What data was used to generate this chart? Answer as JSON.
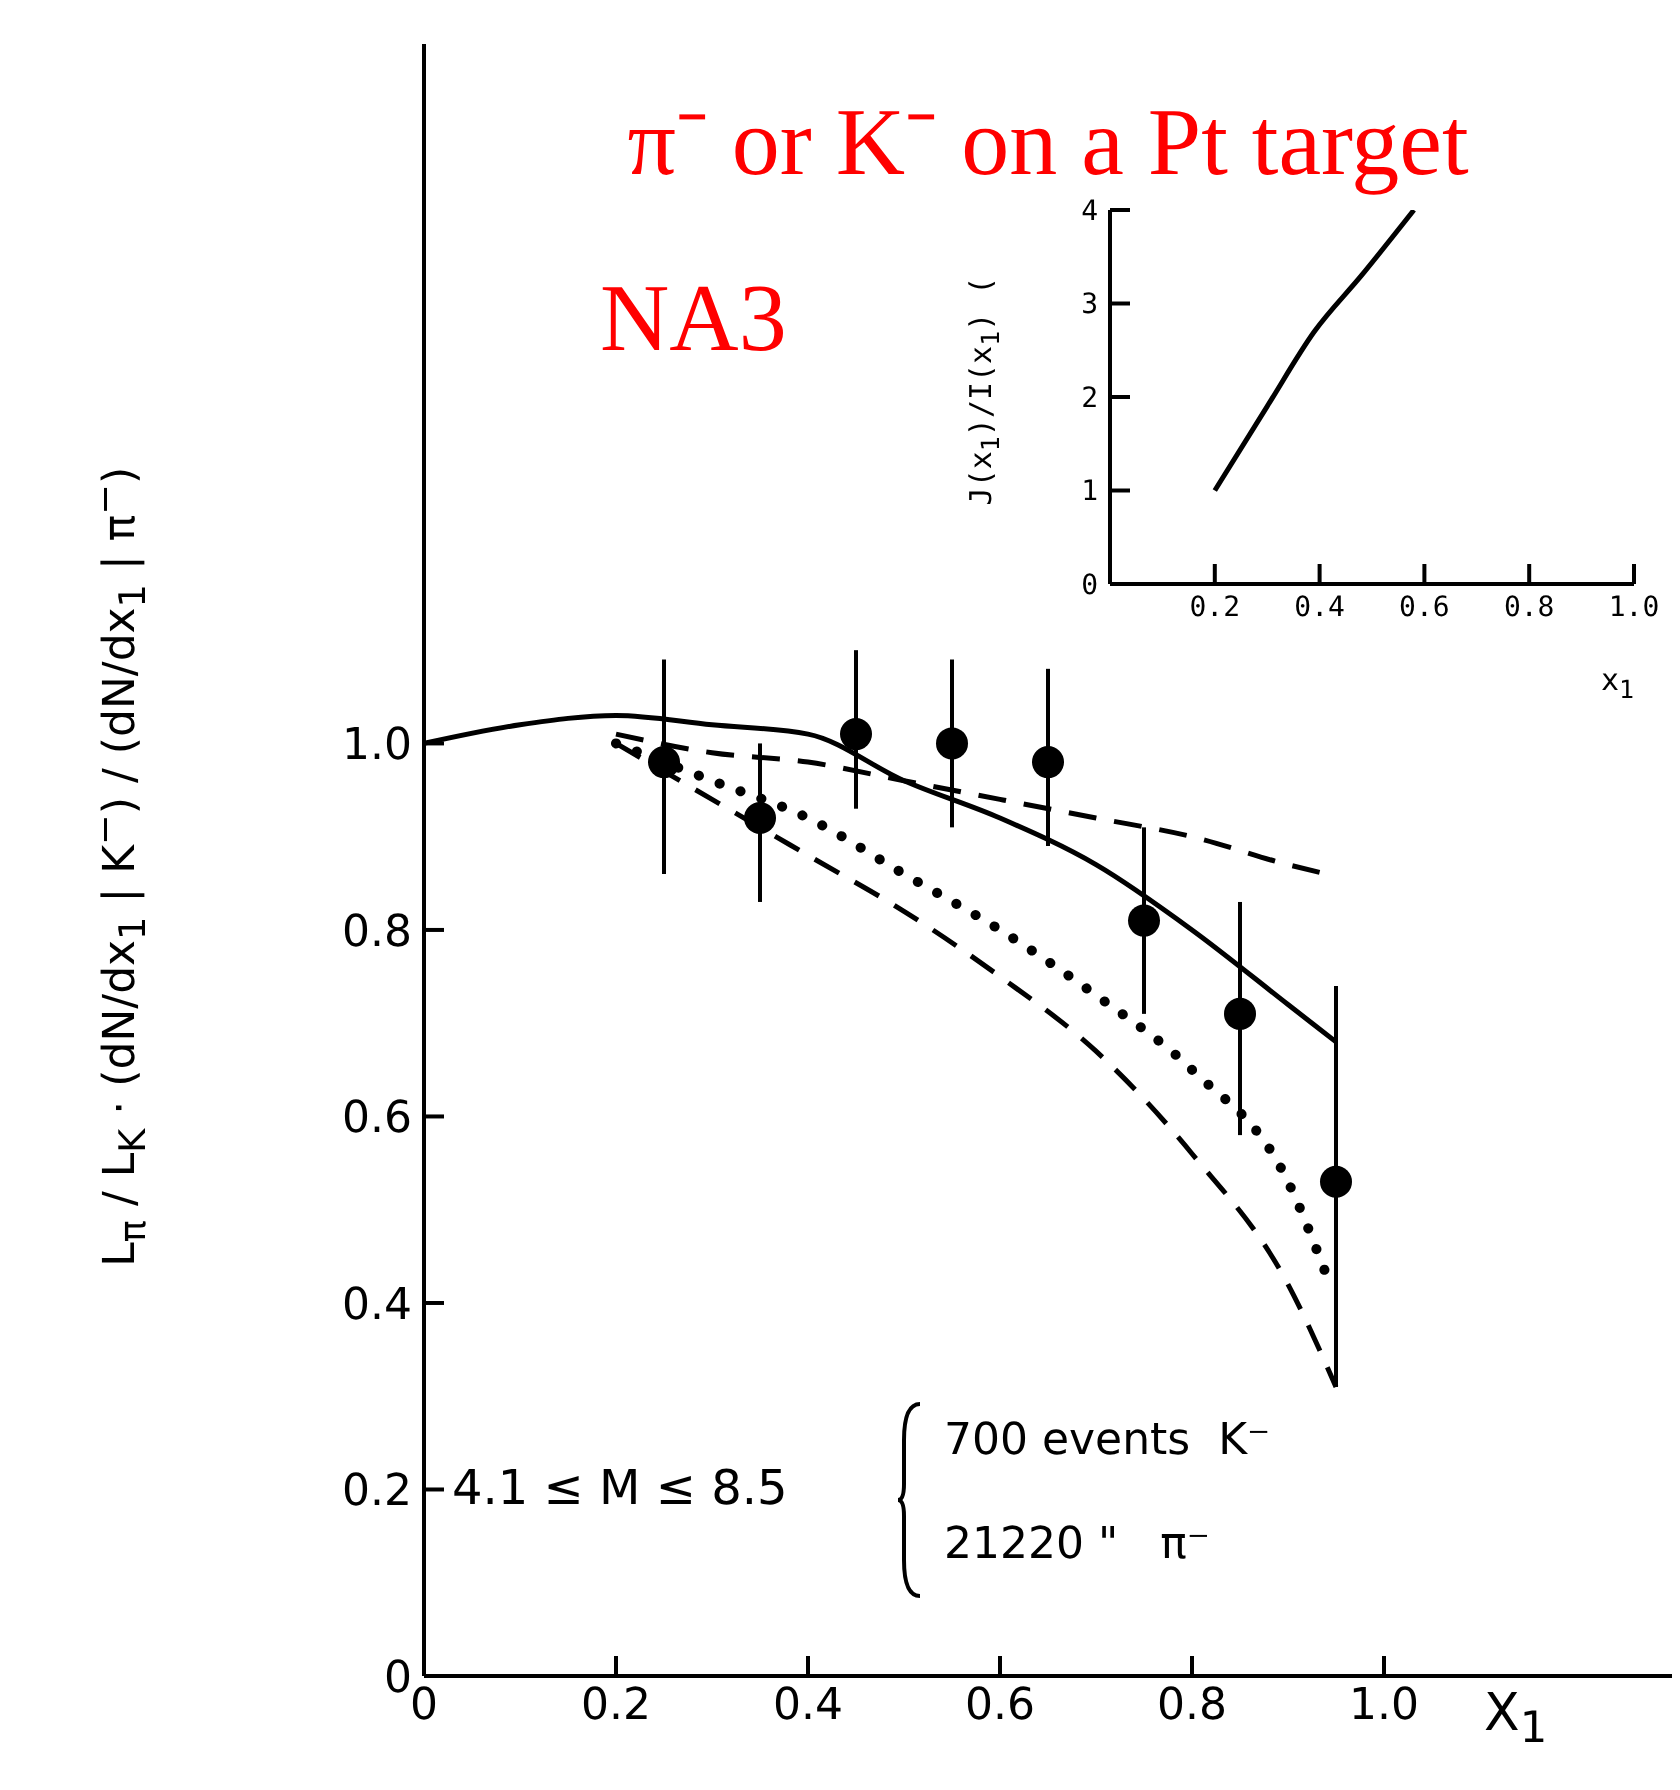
{
  "chart_data": [
    {
      "type": "scatter",
      "title": "π⁻ or K⁻ on a Pt target",
      "xlabel": "X$_{1}$",
      "ylabel": "L$_{π}$ / L$_{K}$ · (dN/dx$_{1}$ | K$^{−}$) / (dN/dx$_{1}$ | π$^{−}$)",
      "annotations": [
        "NA3",
        "4.1 ≤ M ≤ 8.5",
        "700 events  K⁻",
        "21220 \"   π⁻"
      ],
      "xlim": [
        0,
        1.3
      ],
      "xticks": [
        0,
        0.2,
        0.4,
        0.6,
        0.8,
        {
          "value": 1,
          "label": "1.0"
        }
      ],
      "ylim": [
        0,
        1.75
      ],
      "yticks": [
        0,
        0.2,
        0.4,
        0.6,
        0.8,
        {
          "value": 1,
          "label": "1.0"
        }
      ],
      "legend": false,
      "grid": false,
      "series": [
        {
          "type": "scatter",
          "marker": "circle",
          "color": "#000000",
          "x": [
            0.25,
            0.35,
            0.45,
            0.55,
            0.65,
            0.75,
            0.85,
            0.95
          ],
          "values": [
            0.98,
            0.92,
            1.01,
            1.0,
            0.98,
            0.81,
            0.71,
            0.53
          ],
          "errors": [
            [
              0.86,
              1.09
            ],
            [
              0.83,
              1.0
            ],
            [
              0.93,
              1.1
            ],
            [
              0.91,
              1.09
            ],
            [
              0.89,
              1.08
            ],
            [
              0.71,
              0.91
            ],
            [
              0.58,
              0.83
            ],
            [
              0.31,
              0.74
            ]
          ]
        },
        {
          "type": "line",
          "line_style": "solid",
          "color": "#000000",
          "x": [
            0,
            0.1,
            0.2,
            0.3,
            0.4,
            0.5,
            0.6,
            0.7,
            0.8,
            0.9,
            0.95
          ],
          "values": [
            1.0,
            1.02,
            1.03,
            1.02,
            1.01,
            0.96,
            0.92,
            0.87,
            0.8,
            0.72,
            0.68
          ]
        },
        {
          "type": "line",
          "line_style": "dashed",
          "color": "#000000",
          "x": [
            0.2,
            0.3,
            0.4,
            0.5,
            0.6,
            0.7,
            0.8,
            0.9,
            0.94
          ],
          "values": [
            1.01,
            0.99,
            0.98,
            0.96,
            0.94,
            0.92,
            0.9,
            0.87,
            0.86
          ]
        },
        {
          "type": "line",
          "line_style": "dotted",
          "color": "#000000",
          "x": [
            0.2,
            0.3,
            0.4,
            0.5,
            0.6,
            0.7,
            0.8,
            0.9,
            0.94
          ],
          "values": [
            1.0,
            0.96,
            0.92,
            0.86,
            0.8,
            0.73,
            0.65,
            0.53,
            0.43
          ]
        },
        {
          "type": "line",
          "line_style": "dashed",
          "color": "#000000",
          "x": [
            0.2,
            0.3,
            0.4,
            0.5,
            0.6,
            0.7,
            0.8,
            0.9,
            0.95
          ],
          "values": [
            1.0,
            0.94,
            0.88,
            0.82,
            0.75,
            0.67,
            0.56,
            0.42,
            0.31
          ]
        }
      ]
    },
    {
      "type": "line",
      "xlabel": "x$_{1}$",
      "ylabel": "J(x$_{1}$)/I(x$_{1}$) (",
      "xlim": [
        0,
        1.0
      ],
      "xticks": [
        0.2,
        0.4,
        0.6,
        0.8,
        {
          "value": 1,
          "label": "1.0"
        }
      ],
      "ylim": [
        0,
        4
      ],
      "yticks": [
        0,
        1,
        2,
        3,
        4
      ],
      "legend": false,
      "grid": false,
      "series": [
        {
          "color": "#000000",
          "line_style": "solid",
          "x": [
            0.2,
            0.3,
            0.39,
            0.48,
            0.58
          ],
          "values": [
            1.0,
            1.9,
            2.7,
            3.3,
            4.0
          ]
        }
      ]
    }
  ]
}
